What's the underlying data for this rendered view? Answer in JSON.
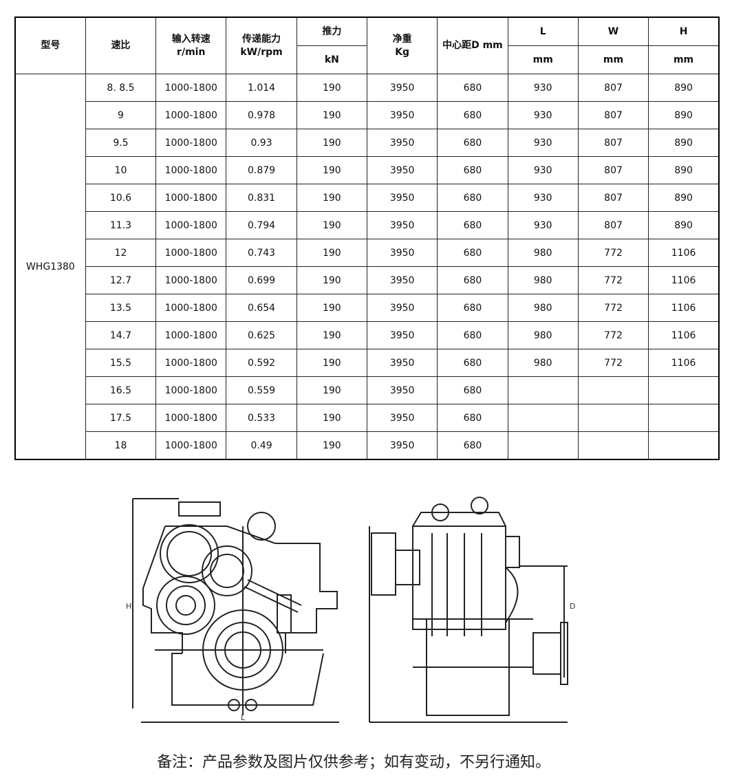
{
  "table": {
    "headers": {
      "model": "型号",
      "ratio": "速比",
      "input_speed": "输入转速",
      "input_speed_unit": "r/min",
      "capacity": "传递能力",
      "capacity_unit": "kW/rpm",
      "thrust": "推力",
      "thrust_unit": "kN",
      "weight": "净重",
      "weight_unit": "Kg",
      "center_distance": "中心距D mm",
      "L": "L",
      "W": "W",
      "H": "H",
      "L_unit": "mm",
      "W_unit": "mm",
      "H_unit": "mm"
    },
    "model": "WHG1380",
    "rows": [
      [
        "8. 8.5",
        "1000-1800",
        "1.014",
        "190",
        "3950",
        "680",
        "930",
        "807",
        "890"
      ],
      [
        "9",
        "1000-1800",
        "0.978",
        "190",
        "3950",
        "680",
        "930",
        "807",
        "890"
      ],
      [
        "9.5",
        "1000-1800",
        "0.93",
        "190",
        "3950",
        "680",
        "930",
        "807",
        "890"
      ],
      [
        "10",
        "1000-1800",
        "0.879",
        "190",
        "3950",
        "680",
        "930",
        "807",
        "890"
      ],
      [
        "10.6",
        "1000-1800",
        "0.831",
        "190",
        "3950",
        "680",
        "930",
        "807",
        "890"
      ],
      [
        "11.3",
        "1000-1800",
        "0.794",
        "190",
        "3950",
        "680",
        "930",
        "807",
        "890"
      ],
      [
        "12",
        "1000-1800",
        "0.743",
        "190",
        "3950",
        "680",
        "980",
        "772",
        "1106"
      ],
      [
        "12.7",
        "1000-1800",
        "0.699",
        "190",
        "3950",
        "680",
        "980",
        "772",
        "1106"
      ],
      [
        "13.5",
        "1000-1800",
        "0.654",
        "190",
        "3950",
        "680",
        "980",
        "772",
        "1106"
      ],
      [
        "14.7",
        "1000-1800",
        "0.625",
        "190",
        "3950",
        "680",
        "980",
        "772",
        "1106"
      ],
      [
        "15.5",
        "1000-1800",
        "0.592",
        "190",
        "3950",
        "680",
        "980",
        "772",
        "1106"
      ],
      [
        "16.5",
        "1000-1800",
        "0.559",
        "190",
        "3950",
        "680",
        "",
        "",
        ""
      ],
      [
        "17.5",
        "1000-1800",
        "0.533",
        "190",
        "3950",
        "680",
        "",
        "",
        ""
      ],
      [
        "18",
        "1000-1800",
        "0.49",
        "190",
        "3950",
        "680",
        "",
        "",
        ""
      ]
    ]
  },
  "drawing": {
    "label_H": "H",
    "label_L": "L",
    "label_D": "D"
  },
  "note": "备注：产品参数及图片仅供参考；如有变动，不另行通知。"
}
